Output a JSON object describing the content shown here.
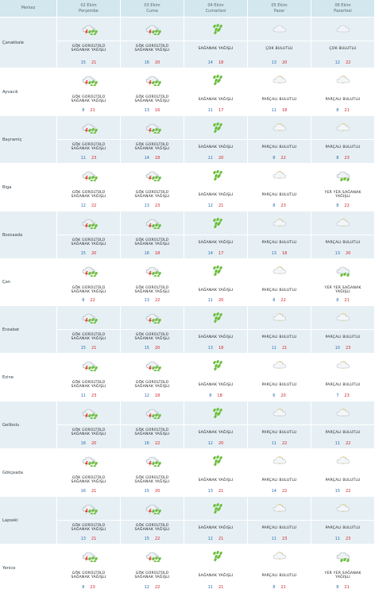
{
  "header": {
    "location_label": "Merkez",
    "days": [
      {
        "date": "02 Ekim",
        "weekday": "Perşembe"
      },
      {
        "date": "03 Ekim",
        "weekday": "Cuma"
      },
      {
        "date": "04 Ekim",
        "weekday": "Cumartesi"
      },
      {
        "date": "05 Ekim",
        "weekday": "Pazar"
      },
      {
        "date": "06 Ekim",
        "weekday": "Pazartesi"
      }
    ]
  },
  "icon_map": {
    "GÖK GÜRÜLTÜLÜ SAĞANAK YAĞIŞLI": "thunder-rain-icon",
    "SAĞANAK YAĞIŞLI": "rain-shower-icon",
    "ÇOK BULUTLU": "cloud-icon",
    "PARÇALI BULUTLU": "partly-cloudy-icon",
    "YER YER SAĞANAK YAĞIŞLI": "scattered-shower-icon"
  },
  "colors": {
    "header_bg": "#d2e7ee",
    "row_alt_bg": "#e6f0f4",
    "temp_min": "#2f6ab8",
    "temp_max": "#d3232a"
  },
  "rows": [
    {
      "name": "Çanakkale",
      "days": [
        {
          "cond": "GÖK GÜRÜLTÜLÜ SAĞANAK YAĞIŞLI",
          "min": "15",
          "max": "21"
        },
        {
          "cond": "GÖK GÜRÜLTÜLÜ SAĞANAK YAĞIŞLI",
          "min": "16",
          "max": "20"
        },
        {
          "cond": "SAĞANAK YAĞIŞLI",
          "min": "14",
          "max": "18"
        },
        {
          "cond": "ÇOK BULUTLU",
          "min": "13",
          "max": "20"
        },
        {
          "cond": "ÇOK BULUTLU",
          "min": "12",
          "max": "22"
        }
      ]
    },
    {
      "name": "Ayvacık",
      "days": [
        {
          "cond": "GÖK GÜRÜLTÜLÜ SAĞANAK YAĞIŞLI",
          "min": "8",
          "max": "21"
        },
        {
          "cond": "GÖK GÜRÜLTÜLÜ SAĞANAK YAĞIŞLI",
          "min": "13",
          "max": "16"
        },
        {
          "cond": "SAĞANAK YAĞIŞLI",
          "min": "11",
          "max": "17"
        },
        {
          "cond": "PARÇALI BULUTLU",
          "min": "11",
          "max": "18"
        },
        {
          "cond": "PARÇALI BULUTLU",
          "min": "8",
          "max": "21"
        }
      ]
    },
    {
      "name": "Bayramiç",
      "days": [
        {
          "cond": "GÖK GÜRÜLTÜLÜ SAĞANAK YAĞIŞLI",
          "min": "11",
          "max": "23"
        },
        {
          "cond": "GÖK GÜRÜLTÜLÜ SAĞANAK YAĞIŞLI",
          "min": "14",
          "max": "18"
        },
        {
          "cond": "SAĞANAK YAĞIŞLI",
          "min": "11",
          "max": "20"
        },
        {
          "cond": "PARÇALI BULUTLU",
          "min": "8",
          "max": "22"
        },
        {
          "cond": "PARÇALI BULUTLU",
          "min": "8",
          "max": "23"
        }
      ]
    },
    {
      "name": "Biga",
      "days": [
        {
          "cond": "GÖK GÜRÜLTÜLÜ SAĞANAK YAĞIŞLI",
          "min": "12",
          "max": "22"
        },
        {
          "cond": "GÖK GÜRÜLTÜLÜ SAĞANAK YAĞIŞLI",
          "min": "13",
          "max": "23"
        },
        {
          "cond": "SAĞANAK YAĞIŞLI",
          "min": "12",
          "max": "21"
        },
        {
          "cond": "PARÇALI BULUTLU",
          "min": "8",
          "max": "23"
        },
        {
          "cond": "YER YER SAĞANAK YAĞIŞLI",
          "min": "8",
          "max": "22"
        }
      ]
    },
    {
      "name": "Bozcaada",
      "days": [
        {
          "cond": "GÖK GÜRÜLTÜLÜ SAĞANAK YAĞIŞLI",
          "min": "15",
          "max": "20"
        },
        {
          "cond": "GÖK GÜRÜLTÜLÜ SAĞANAK YAĞIŞLI",
          "min": "16",
          "max": "18"
        },
        {
          "cond": "SAĞANAK YAĞIŞLI",
          "min": "14",
          "max": "17"
        },
        {
          "cond": "PARÇALI BULUTLU",
          "min": "13",
          "max": "18"
        },
        {
          "cond": "PARÇALI BULUTLU",
          "min": "13",
          "max": "20"
        }
      ]
    },
    {
      "name": "Çan",
      "days": [
        {
          "cond": "GÖK GÜRÜLTÜLÜ SAĞANAK YAĞIŞLI",
          "min": "8",
          "max": "22"
        },
        {
          "cond": "GÖK GÜRÜLTÜLÜ SAĞANAK YAĞIŞLI",
          "min": "13",
          "max": "22"
        },
        {
          "cond": "SAĞANAK YAĞIŞLI",
          "min": "11",
          "max": "20"
        },
        {
          "cond": "PARÇALI BULUTLU",
          "min": "8",
          "max": "22"
        },
        {
          "cond": "YER YER SAĞANAK YAĞIŞLI",
          "min": "8",
          "max": "21"
        }
      ]
    },
    {
      "name": "Eceabat",
      "days": [
        {
          "cond": "GÖK GÜRÜLTÜLÜ SAĞANAK YAĞIŞLI",
          "min": "15",
          "max": "21"
        },
        {
          "cond": "GÖK GÜRÜLTÜLÜ SAĞANAK YAĞIŞLI",
          "min": "15",
          "max": "20"
        },
        {
          "cond": "SAĞANAK YAĞIŞLI",
          "min": "13",
          "max": "18"
        },
        {
          "cond": "PARÇALI BULUTLU",
          "min": "11",
          "max": "21"
        },
        {
          "cond": "PARÇALI BULUTLU",
          "min": "10",
          "max": "23"
        }
      ]
    },
    {
      "name": "Ezine",
      "days": [
        {
          "cond": "GÖK GÜRÜLTÜLÜ SAĞANAK YAĞIŞLI",
          "min": "11",
          "max": "23"
        },
        {
          "cond": "GÖK GÜRÜLTÜLÜ SAĞANAK YAĞIŞLI",
          "min": "12",
          "max": "18"
        },
        {
          "cond": "SAĞANAK YAĞIŞLI",
          "min": "8",
          "max": "18"
        },
        {
          "cond": "PARÇALI BULUTLU",
          "min": "6",
          "max": "20"
        },
        {
          "cond": "PARÇALI BULUTLU",
          "min": "7",
          "max": "23"
        }
      ]
    },
    {
      "name": "Gelibolu",
      "days": [
        {
          "cond": "GÖK GÜRÜLTÜLÜ SAĞANAK YAĞIŞLI",
          "min": "16",
          "max": "20"
        },
        {
          "cond": "GÖK GÜRÜLTÜLÜ SAĞANAK YAĞIŞLI",
          "min": "16",
          "max": "22"
        },
        {
          "cond": "SAĞANAK YAĞIŞLI",
          "min": "12",
          "max": "20"
        },
        {
          "cond": "PARÇALI BULUTLU",
          "min": "11",
          "max": "22"
        },
        {
          "cond": "PARÇALI BULUTLU",
          "min": "11",
          "max": "22"
        }
      ]
    },
    {
      "name": "Gökçeada",
      "days": [
        {
          "cond": "GÖK GÜRÜLTÜLÜ SAĞANAK YAĞIŞLI",
          "min": "16",
          "max": "21"
        },
        {
          "cond": "GÖK GÜRÜLTÜLÜ SAĞANAK YAĞIŞLI",
          "min": "15",
          "max": "20"
        },
        {
          "cond": "SAĞANAK YAĞIŞLI",
          "min": "13",
          "max": "21"
        },
        {
          "cond": "PARÇALI BULUTLU",
          "min": "14",
          "max": "22"
        },
        {
          "cond": "PARÇALI BULUTLU",
          "min": "15",
          "max": "22"
        }
      ]
    },
    {
      "name": "Lapseki",
      "days": [
        {
          "cond": "GÖK GÜRÜLTÜLÜ SAĞANAK YAĞIŞLI",
          "min": "13",
          "max": "21"
        },
        {
          "cond": "GÖK GÜRÜLTÜLÜ SAĞANAK YAĞIŞLI",
          "min": "15",
          "max": "22"
        },
        {
          "cond": "SAĞANAK YAĞIŞLI",
          "min": "12",
          "max": "21"
        },
        {
          "cond": "PARÇALI BULUTLU",
          "min": "11",
          "max": "23"
        },
        {
          "cond": "PARÇALI BULUTLU",
          "min": "11",
          "max": "23"
        }
      ]
    },
    {
      "name": "Yenice",
      "days": [
        {
          "cond": "GÖK GÜRÜLTÜLÜ SAĞANAK YAĞIŞLI",
          "min": "8",
          "max": "23"
        },
        {
          "cond": "GÖK GÜRÜLTÜLÜ SAĞANAK YAĞIŞLI",
          "min": "12",
          "max": "22"
        },
        {
          "cond": "SAĞANAK YAĞIŞLI",
          "min": "11",
          "max": "21"
        },
        {
          "cond": "PARÇALI BULUTLU",
          "min": "8",
          "max": "21"
        },
        {
          "cond": "YER YER SAĞANAK YAĞIŞLI",
          "min": "8",
          "max": "21"
        }
      ]
    }
  ]
}
